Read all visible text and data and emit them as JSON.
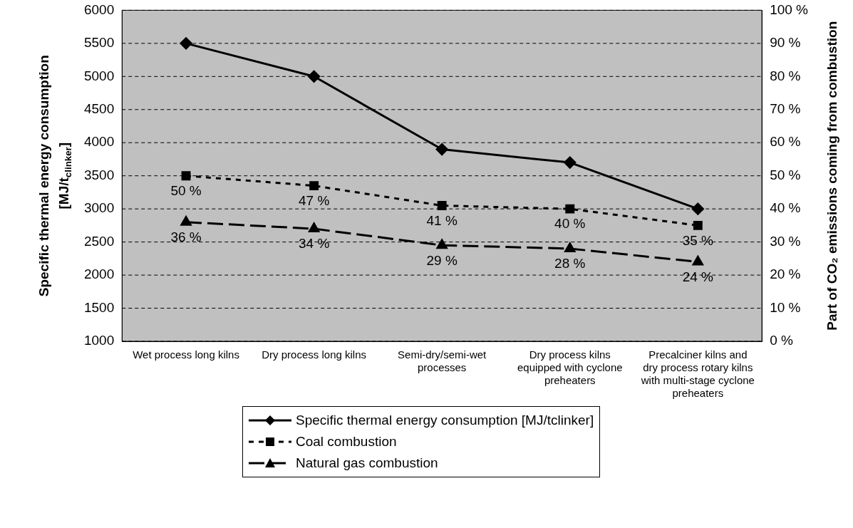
{
  "chart_data": {
    "type": "line",
    "categories": [
      "Wet process long kilns",
      "Dry process long kilns",
      "Semi-dry/semi-wet processes",
      "Dry process kilns equipped with cyclone preheaters",
      "Precalciner kilns and dry process rotary kilns with multi-stage cyclone preheaters"
    ],
    "ylabel": "Specific thermal energy consumption [MJ/t$_{clinker}$]",
    "y2label": "Part of CO₂ emissions coming from combustion",
    "ylim": [
      1000,
      6000
    ],
    "yticks": [
      1000,
      1500,
      2000,
      2500,
      3000,
      3500,
      4000,
      4500,
      5000,
      5500,
      6000
    ],
    "y2lim": [
      0,
      100
    ],
    "y2ticks": [
      {
        "value": 0,
        "label": "0 %"
      },
      {
        "value": 10,
        "label": "10 %"
      },
      {
        "value": 20,
        "label": "20 %"
      },
      {
        "value": 30,
        "label": "30 %"
      },
      {
        "value": 40,
        "label": "40 %"
      },
      {
        "value": 50,
        "label": "50 %"
      },
      {
        "value": 60,
        "label": "60 %"
      },
      {
        "value": 70,
        "label": "70 %"
      },
      {
        "value": 80,
        "label": "80 %"
      },
      {
        "value": 90,
        "label": "90 %"
      },
      {
        "value": 100,
        "label": "100 %"
      }
    ],
    "grid": "y",
    "legend": "bottom",
    "series": [
      {
        "name": "Specific thermal energy consumption [MJ/tclinker]",
        "color": "#000000",
        "values": [
          5500,
          5000,
          3900,
          3700,
          3000
        ],
        "marker": "diamond",
        "line_style": "solid"
      },
      {
        "name": "Coal combustion",
        "color": "#000000",
        "axis": "y2",
        "values": [
          50,
          47,
          41,
          40,
          35
        ],
        "marker": "square",
        "line_style": "dotted",
        "value_labels": [
          "50 %",
          "47 %",
          "41 %",
          "40 %",
          "35 %"
        ]
      },
      {
        "name": "Natural gas combustion",
        "color": "#000000",
        "axis": "y2",
        "values": [
          36,
          34,
          29,
          28,
          24
        ],
        "marker": "triangle",
        "line_style": "dashed",
        "value_labels": [
          "36 %",
          "34 %",
          "29 %",
          "28 %",
          "24 %"
        ]
      }
    ]
  }
}
